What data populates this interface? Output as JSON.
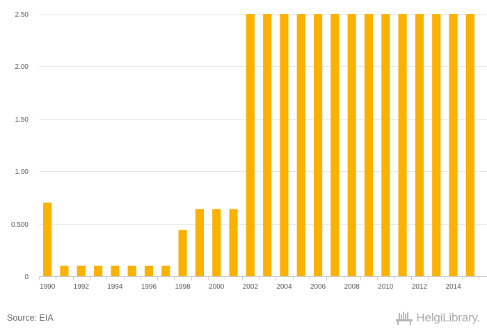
{
  "chart_data": {
    "type": "bar",
    "categories": [
      "1990",
      "1991",
      "1992",
      "1993",
      "1994",
      "1995",
      "1996",
      "1997",
      "1998",
      "1999",
      "2000",
      "2001",
      "2002",
      "2003",
      "2004",
      "2005",
      "2006",
      "2007",
      "2008",
      "2009",
      "2010",
      "2011",
      "2012",
      "2013",
      "2014",
      "2015"
    ],
    "x_tick_labels": [
      "1990",
      "1992",
      "1994",
      "1996",
      "1998",
      "2000",
      "2002",
      "2004",
      "2006",
      "2008",
      "2010",
      "2012",
      "2014"
    ],
    "values": [
      0.7,
      0.1,
      0.1,
      0.1,
      0.1,
      0.1,
      0.1,
      0.1,
      0.44,
      0.64,
      0.64,
      0.64,
      2.5,
      2.5,
      2.5,
      2.5,
      2.5,
      2.5,
      2.5,
      2.5,
      2.5,
      2.5,
      2.5,
      2.5,
      2.5,
      2.5
    ],
    "y_ticks": [
      0,
      0.5,
      1.0,
      1.5,
      2.0,
      2.5
    ],
    "y_tick_labels": [
      "0",
      "0.500",
      "1.00",
      "1.50",
      "2.00",
      "2.50"
    ],
    "ylim": [
      0,
      2.5
    ],
    "title": "",
    "xlabel": "",
    "ylabel": "",
    "grid": "horizontal",
    "legend": "none",
    "bar_color": "#fbb100",
    "grid_color": "#e6e6e6"
  },
  "footer": {
    "source": "Source: EIA",
    "brand": "HelgiLibrary.",
    "brand_icon": "helgi-library-logo-icon"
  }
}
